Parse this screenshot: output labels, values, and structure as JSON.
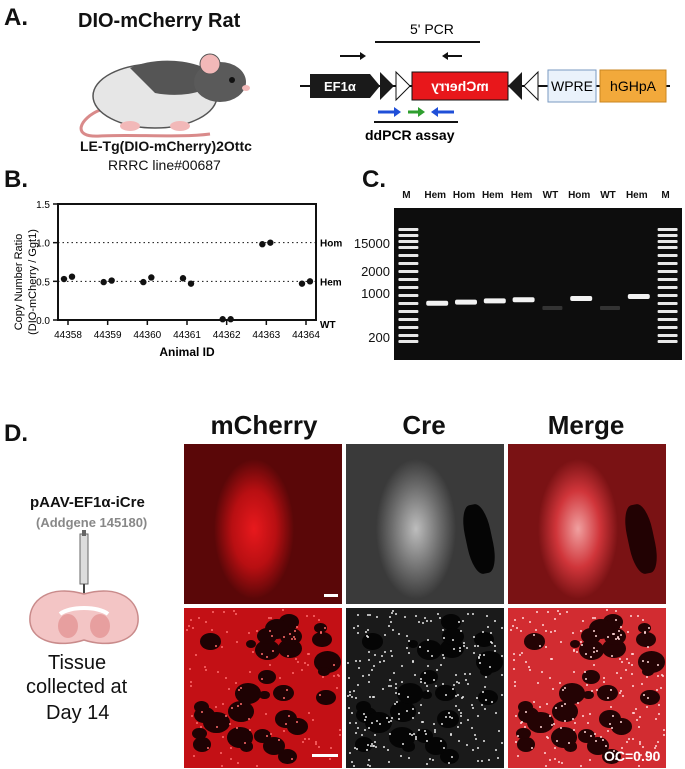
{
  "panelA": {
    "label": "A.",
    "rat_title": "DIO-mCherry Rat",
    "strain": "LE-Tg(DIO-mCherry)2Ottc",
    "rrrc_line": "RRRC line#00687",
    "pcr_label": "5' PCR",
    "ef1a": "EF1α",
    "mcherry": "mCherry",
    "wpre": "WPRE",
    "hghpa": "hGHpA",
    "ddpcr_label": "ddPCR assay",
    "colors": {
      "ef1a": "#1a1a1a",
      "mcherry": "#e8171b",
      "wpre": "#eaf2fb",
      "hghpa": "#f2a93b",
      "blue_arrow": "#1f4fd8",
      "green_arrow": "#2e9e2e"
    }
  },
  "panelB": {
    "label": "B."
  },
  "chart_data": {
    "type": "scatter",
    "xlabel": "Animal ID",
    "ylabel": "Copy Number Ratio\n(DIO-mCherry / Ggt1)",
    "categories": [
      "44358",
      "44359",
      "44360",
      "44361",
      "44362",
      "44363",
      "44364"
    ],
    "ylim": [
      0,
      1.5
    ],
    "yticks": [
      "0.0",
      "0.5",
      "1.0",
      "1.5"
    ],
    "reference_lines": [
      {
        "label": "Hom",
        "value": 1.0
      },
      {
        "label": "Hem",
        "value": 0.5
      },
      {
        "label": "WT",
        "value": 0.0
      }
    ],
    "points": [
      {
        "animal": "44358",
        "values": [
          0.53,
          0.56
        ]
      },
      {
        "animal": "44359",
        "values": [
          0.49,
          0.51
        ]
      },
      {
        "animal": "44360",
        "values": [
          0.49,
          0.55
        ]
      },
      {
        "animal": "44361",
        "values": [
          0.54,
          0.47
        ]
      },
      {
        "animal": "44362",
        "values": [
          0.01,
          0.01
        ]
      },
      {
        "animal": "44363",
        "values": [
          0.98,
          1.0
        ]
      },
      {
        "animal": "44364",
        "values": [
          0.47,
          0.5
        ]
      }
    ]
  },
  "panelC": {
    "label": "C.",
    "lanes": [
      "M",
      "Hem",
      "Hom",
      "Hem",
      "Hem",
      "WT",
      "Hom",
      "WT",
      "Hem",
      "M"
    ],
    "ladder_labels": [
      "15000",
      "2000",
      "1000",
      "200"
    ]
  },
  "panelD": {
    "label": "D.",
    "construct": "pAAV-EF1α-iCre",
    "addgene": "(Addgene 145180)",
    "tissue_line1": "Tissue",
    "tissue_line2": "collected at",
    "tissue_line3": "Day 14",
    "col_mcherry": "mCherry",
    "col_cre": "Cre",
    "col_merge": "Merge",
    "oc": "OC=0.90"
  }
}
